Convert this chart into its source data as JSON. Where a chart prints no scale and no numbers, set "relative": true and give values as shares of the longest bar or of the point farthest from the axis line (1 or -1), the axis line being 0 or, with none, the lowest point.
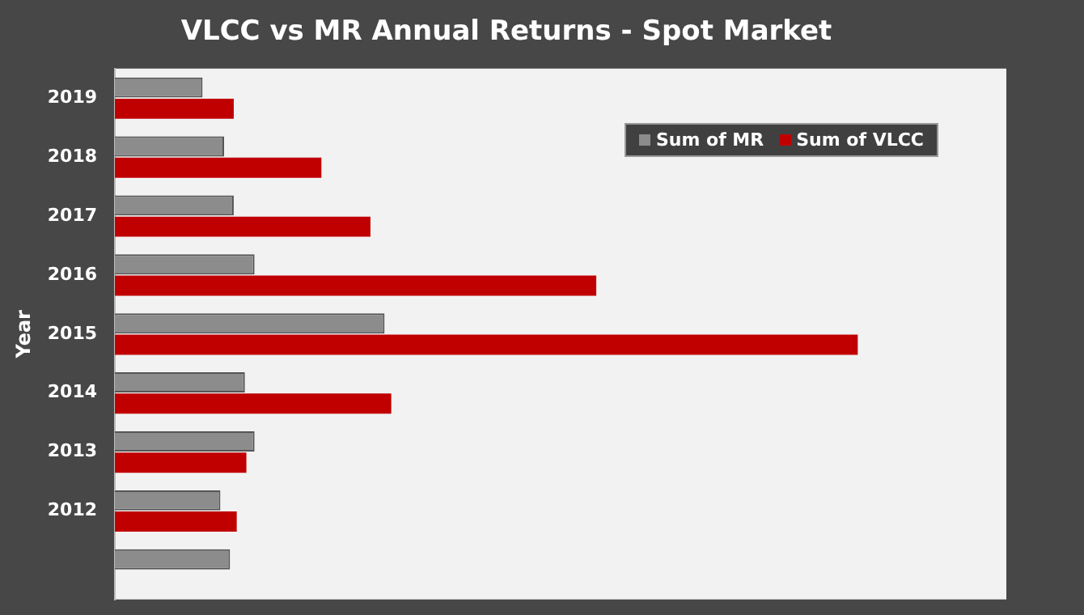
{
  "chart_data": {
    "type": "bar",
    "title": "VLCC vs MR Annual Returns - Spot Market",
    "ylabel": "Year",
    "orientation": "horizontal",
    "relative": true,
    "legend": "top right",
    "categories": [
      "2019",
      "2018",
      "2017",
      "2016",
      "2015",
      "2014",
      "2013",
      "2012",
      null
    ],
    "series": [
      {
        "name": "Sum of MR",
        "color": "#8c8c8c",
        "values": [
          0.118,
          0.147,
          0.16,
          0.188,
          0.363,
          0.175,
          0.188,
          0.142,
          0.155
        ]
      },
      {
        "name": "Sum of VLCC",
        "color": "#c00000",
        "values": [
          0.16,
          0.278,
          0.344,
          0.648,
          1,
          0.372,
          0.177,
          0.164,
          null
        ]
      }
    ]
  }
}
